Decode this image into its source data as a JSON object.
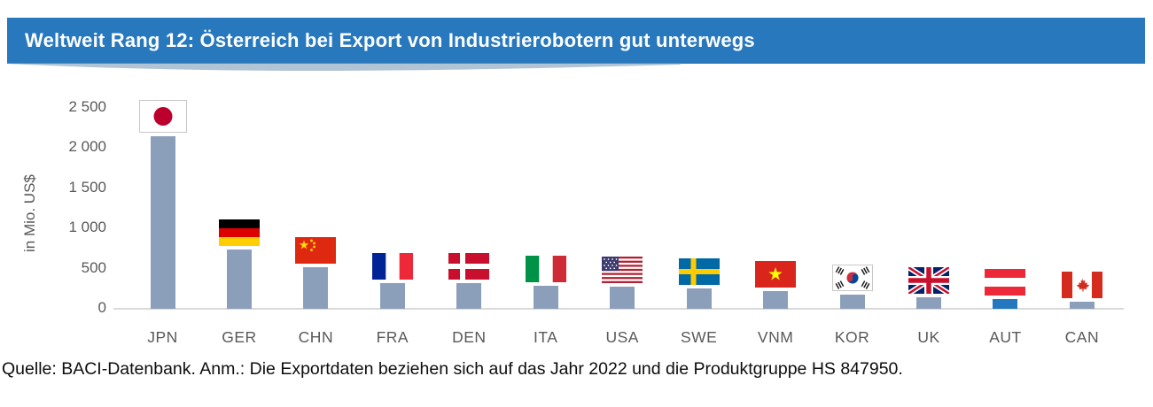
{
  "header": {
    "title": "Weltweit Rang 12: Österreich bei Export von Industrierobotern gut unterwegs",
    "background_color": "#2878BE",
    "text_color": "#FFFFFF"
  },
  "chart_data": {
    "type": "bar",
    "title": "",
    "xlabel": "",
    "ylabel": "in Mio. US$",
    "categories": [
      "JPN",
      "GER",
      "CHN",
      "FRA",
      "DEN",
      "ITA",
      "USA",
      "SWE",
      "VNM",
      "KOR",
      "UK",
      "AUT",
      "CAN"
    ],
    "values": [
      2150,
      740,
      520,
      320,
      315,
      290,
      270,
      255,
      215,
      180,
      140,
      125,
      90
    ],
    "ylim": [
      0,
      2500
    ],
    "yticks": [
      0,
      500,
      1000,
      1500,
      2000,
      2500
    ],
    "ytick_labels": [
      "0",
      "500",
      "1 000",
      "1 500",
      "2 000",
      "2 500"
    ],
    "grid": false,
    "legend": "none",
    "bar_color": "#8C9FBA",
    "highlight_category": "AUT",
    "highlight_color": "#2578BE",
    "axis_text_color": "#595959",
    "axis_line_color": "#D9D9D9",
    "flag_icons": [
      "flag-jpn-icon",
      "flag-ger-icon",
      "flag-chn-icon",
      "flag-fra-icon",
      "flag-den-icon",
      "flag-ita-icon",
      "flag-usa-icon",
      "flag-swe-icon",
      "flag-vnm-icon",
      "flag-kor-icon",
      "flag-uk-icon",
      "flag-aut-icon",
      "flag-can-icon"
    ]
  },
  "footer": {
    "source_note": "Quelle: BACI-Datenbank. Anm.: Die Exportdaten beziehen sich auf das Jahr 2022 und die Produktgruppe HS 847950."
  }
}
